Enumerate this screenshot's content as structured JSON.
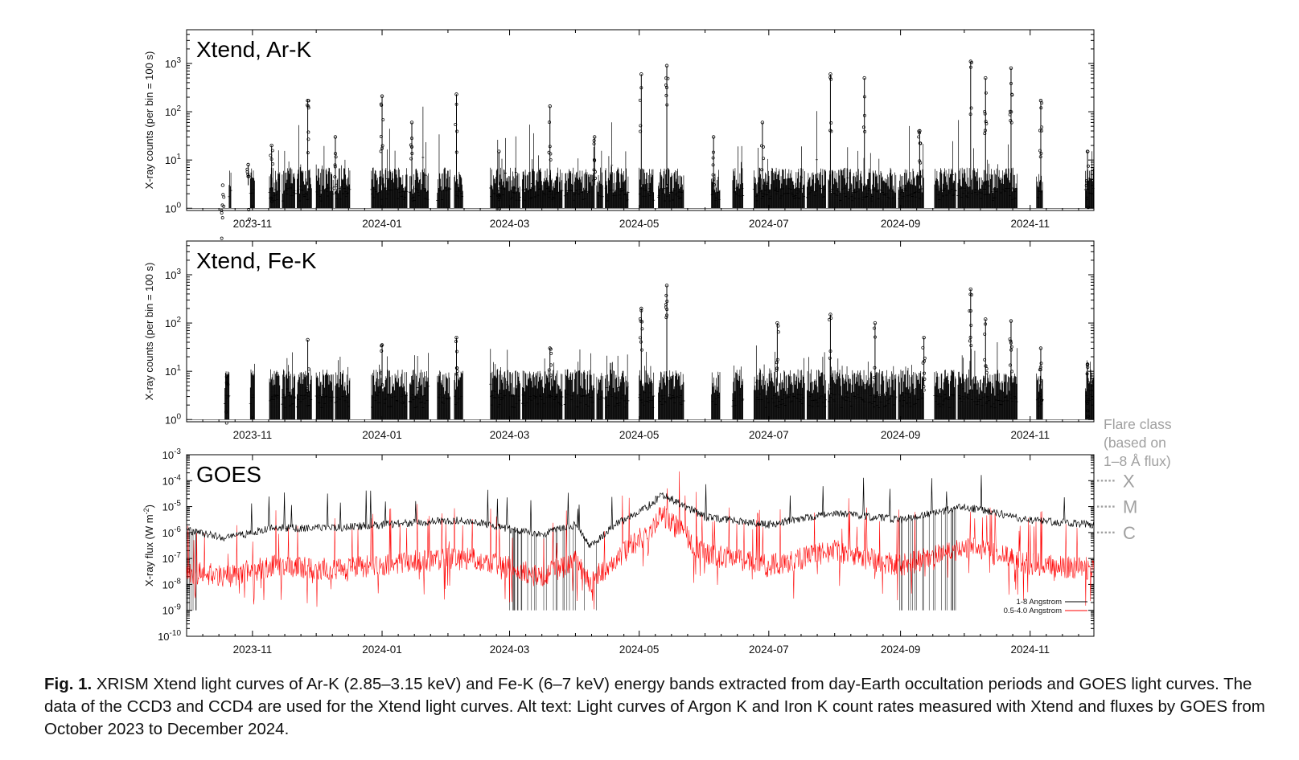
{
  "chart_data": [
    {
      "type": "line",
      "panel_label": "Xtend, Ar-K",
      "ylabel": "X-ray counts (per bin = 100 s)",
      "yscale": "log",
      "ylim": [
        0.9,
        5000
      ],
      "y_ticks": [
        {
          "exp": "0"
        },
        {
          "exp": "1"
        },
        {
          "exp": "2"
        },
        {
          "exp": "3"
        }
      ],
      "x_tick_labels": [
        "2023-11",
        "2024-01",
        "2024-03",
        "2024-05",
        "2024-07",
        "2024-09",
        "2024-11"
      ],
      "xlim": [
        "2023-10-01",
        "2024-12-01"
      ],
      "series": [
        {
          "color": "#000000",
          "points": [
            {
              "x": "2023-10-18",
              "y": 3
            },
            {
              "x": "2023-10-30",
              "y": 8
            },
            {
              "x": "2023-11-10",
              "y": 20
            },
            {
              "x": "2023-11-27",
              "y": 170
            },
            {
              "x": "2023-12-10",
              "y": 30
            },
            {
              "x": "2024-01-01",
              "y": 210
            },
            {
              "x": "2024-01-15",
              "y": 60
            },
            {
              "x": "2024-02-05",
              "y": 230
            },
            {
              "x": "2024-02-25",
              "y": 15
            },
            {
              "x": "2024-03-20",
              "y": 130
            },
            {
              "x": "2024-04-10",
              "y": 30
            },
            {
              "x": "2024-05-02",
              "y": 600
            },
            {
              "x": "2024-05-14",
              "y": 900
            },
            {
              "x": "2024-06-05",
              "y": 30
            },
            {
              "x": "2024-06-28",
              "y": 60
            },
            {
              "x": "2024-07-30",
              "y": 600
            },
            {
              "x": "2024-08-15",
              "y": 500
            },
            {
              "x": "2024-09-10",
              "y": 40
            },
            {
              "x": "2024-10-04",
              "y": 1100
            },
            {
              "x": "2024-10-11",
              "y": 500
            },
            {
              "x": "2024-10-23",
              "y": 800
            },
            {
              "x": "2024-11-06",
              "y": 170
            },
            {
              "x": "2024-11-28",
              "y": 15
            }
          ]
        }
      ]
    },
    {
      "type": "line",
      "panel_label": "Xtend, Fe-K",
      "ylabel": "X-ray counts (per bin = 100 s)",
      "yscale": "log",
      "ylim": [
        0.9,
        5000
      ],
      "y_ticks": [
        {
          "exp": "0"
        },
        {
          "exp": "1"
        },
        {
          "exp": "2"
        },
        {
          "exp": "3"
        }
      ],
      "x_tick_labels": [
        "2023-11",
        "2024-01",
        "2024-03",
        "2024-05",
        "2024-07",
        "2024-09",
        "2024-11"
      ],
      "xlim": [
        "2023-10-01",
        "2024-12-01"
      ],
      "series": [
        {
          "color": "#000000",
          "points": [
            {
              "x": "2023-10-20",
              "y": 8
            },
            {
              "x": "2023-11-27",
              "y": 45
            },
            {
              "x": "2024-01-01",
              "y": 35
            },
            {
              "x": "2024-02-05",
              "y": 50
            },
            {
              "x": "2024-03-20",
              "y": 30
            },
            {
              "x": "2024-05-02",
              "y": 200
            },
            {
              "x": "2024-05-14",
              "y": 600
            },
            {
              "x": "2024-07-05",
              "y": 100
            },
            {
              "x": "2024-07-30",
              "y": 150
            },
            {
              "x": "2024-08-20",
              "y": 100
            },
            {
              "x": "2024-09-12",
              "y": 50
            },
            {
              "x": "2024-10-04",
              "y": 500
            },
            {
              "x": "2024-10-11",
              "y": 120
            },
            {
              "x": "2024-10-23",
              "y": 110
            },
            {
              "x": "2024-11-06",
              "y": 30
            },
            {
              "x": "2024-11-28",
              "y": 14
            }
          ]
        }
      ]
    },
    {
      "type": "line",
      "panel_label": "GOES",
      "ylabel": "X-ray flux (W m",
      "ylabel_sup": "-2",
      "ylabel_end": ")",
      "yscale": "log",
      "ylim": [
        1e-10,
        0.001
      ],
      "y_ticks": [
        {
          "exp": "-10"
        },
        {
          "exp": "-9"
        },
        {
          "exp": "-8"
        },
        {
          "exp": "-7"
        },
        {
          "exp": "-6"
        },
        {
          "exp": "-5"
        },
        {
          "exp": "-4"
        },
        {
          "exp": "-3"
        }
      ],
      "x_tick_labels": [
        "2023-11",
        "2024-01",
        "2024-03",
        "2024-05",
        "2024-07",
        "2024-09",
        "2024-11"
      ],
      "xlim": [
        "2023-10-01",
        "2024-12-01"
      ],
      "legend_position": "bottom-right",
      "flare_class_title": [
        "Flare class",
        "(based on",
        "1–8 Å flux)"
      ],
      "flare_classes": [
        {
          "label": "X",
          "level": 0.0001
        },
        {
          "label": "M",
          "level": 1e-05
        },
        {
          "label": "C",
          "level": 1e-06
        }
      ],
      "series": [
        {
          "name": "1-8 Angstrom",
          "color": "#000000",
          "points": [
            {
              "x": "2023-10-01",
              "y": 1.2e-06
            },
            {
              "x": "2023-10-20",
              "y": 6e-07
            },
            {
              "x": "2023-11-10",
              "y": 1.5e-06
            },
            {
              "x": "2023-12-10",
              "y": 1.5e-06
            },
            {
              "x": "2024-01-01",
              "y": 2e-06
            },
            {
              "x": "2024-02-05",
              "y": 3e-06
            },
            {
              "x": "2024-02-20",
              "y": 2e-06
            },
            {
              "x": "2024-03-15",
              "y": 8e-07
            },
            {
              "x": "2024-04-01",
              "y": 2e-06
            },
            {
              "x": "2024-04-08",
              "y": 3e-07
            },
            {
              "x": "2024-04-20",
              "y": 2e-06
            },
            {
              "x": "2024-05-05",
              "y": 1e-05
            },
            {
              "x": "2024-05-12",
              "y": 3e-05
            },
            {
              "x": "2024-06-01",
              "y": 4e-06
            },
            {
              "x": "2024-07-01",
              "y": 2e-06
            },
            {
              "x": "2024-08-01",
              "y": 6e-06
            },
            {
              "x": "2024-09-01",
              "y": 3e-06
            },
            {
              "x": "2024-10-01",
              "y": 1e-05
            },
            {
              "x": "2024-11-01",
              "y": 3e-06
            },
            {
              "x": "2024-12-01",
              "y": 2e-06
            }
          ]
        },
        {
          "name": "0.5-4.0 Angstrom",
          "color": "#ff0000",
          "points": [
            {
              "x": "2023-10-01",
              "y": 3e-08
            },
            {
              "x": "2023-10-20",
              "y": 2e-08
            },
            {
              "x": "2023-11-10",
              "y": 5e-08
            },
            {
              "x": "2023-12-10",
              "y": 4e-08
            },
            {
              "x": "2024-01-01",
              "y": 6e-08
            },
            {
              "x": "2024-02-05",
              "y": 1e-07
            },
            {
              "x": "2024-02-20",
              "y": 8e-08
            },
            {
              "x": "2024-03-15",
              "y": 2e-08
            },
            {
              "x": "2024-04-01",
              "y": 8e-08
            },
            {
              "x": "2024-04-08",
              "y": 1.2e-08
            },
            {
              "x": "2024-04-20",
              "y": 1e-07
            },
            {
              "x": "2024-05-05",
              "y": 1e-06
            },
            {
              "x": "2024-05-12",
              "y": 5e-06
            },
            {
              "x": "2024-06-01",
              "y": 1.5e-07
            },
            {
              "x": "2024-07-01",
              "y": 5e-08
            },
            {
              "x": "2024-08-01",
              "y": 2e-07
            },
            {
              "x": "2024-09-01",
              "y": 5e-08
            },
            {
              "x": "2024-10-01",
              "y": 3e-07
            },
            {
              "x": "2024-11-01",
              "y": 6e-08
            },
            {
              "x": "2024-12-01",
              "y": 4e-08
            }
          ]
        }
      ]
    }
  ],
  "caption": {
    "label": "Fig. 1.",
    "text": " XRISM Xtend light curves of Ar-K (2.85–3.15 keV) and Fe-K (6–7 keV) energy bands extracted from day-Earth occultation periods and GOES light curves. The data of the CCD3 and CCD4 are used for the Xtend light curves. Alt text: Light curves of Argon K and Iron K count rates measured with Xtend and fluxes by GOES from October 2023 to December 2024."
  }
}
